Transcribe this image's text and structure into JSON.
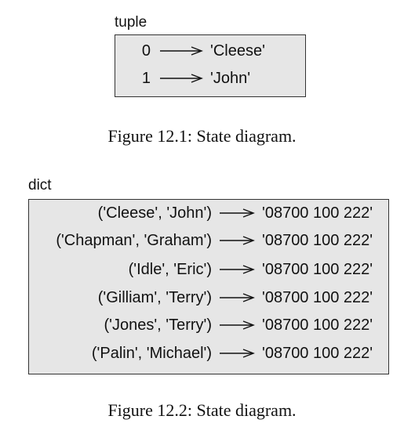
{
  "tuple": {
    "label": "tuple",
    "fill": "#e6e6e6",
    "rows": [
      {
        "key": "0",
        "value": "'Cleese'"
      },
      {
        "key": "1",
        "value": "'John'"
      }
    ]
  },
  "figure1": {
    "caption": "Figure 12.1: State diagram."
  },
  "dict": {
    "label": "dict",
    "fill": "#e6e6e6",
    "rows": [
      {
        "key": "('Cleese', 'John')",
        "value": "'08700 100 222'"
      },
      {
        "key": "('Chapman', 'Graham')",
        "value": "'08700 100 222'"
      },
      {
        "key": "('Idle', 'Eric')",
        "value": "'08700 100 222'"
      },
      {
        "key": "('Gilliam', 'Terry')",
        "value": "'08700 100 222'"
      },
      {
        "key": "('Jones', 'Terry')",
        "value": "'08700 100 222'"
      },
      {
        "key": "('Palin', 'Michael')",
        "value": "'08700 100 222'"
      }
    ]
  },
  "figure2": {
    "caption": "Figure 12.2: State diagram."
  }
}
